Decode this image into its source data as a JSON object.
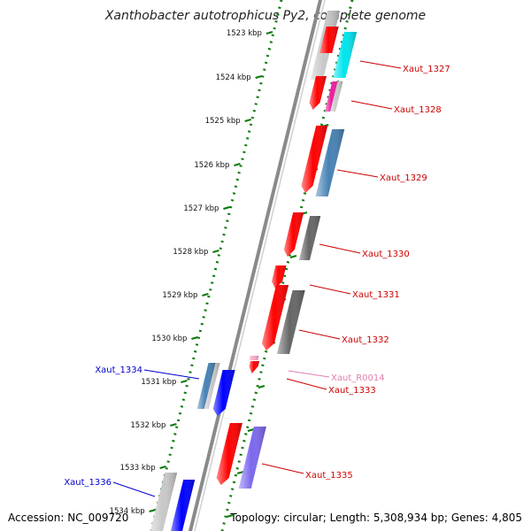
{
  "title": "Xanthobacter autotrophicus Py2, complete genome",
  "footer": {
    "accession": "Accession: NC_009720",
    "summary": "Topology: circular; Length: 5,308,934 bp; Genes: 4,805"
  },
  "ticks": [
    {
      "label": "1523 kbp"
    },
    {
      "label": "1524 kbp"
    },
    {
      "label": "1525 kbp"
    },
    {
      "label": "1526 kbp"
    },
    {
      "label": "1527 kbp"
    },
    {
      "label": "1528 kbp"
    },
    {
      "label": "1529 kbp"
    },
    {
      "label": "1530 kbp"
    },
    {
      "label": "1531 kbp"
    },
    {
      "label": "1532 kbp"
    },
    {
      "label": "1533 kbp"
    },
    {
      "label": "1534 kbp"
    }
  ],
  "colors": {
    "backbone": "#8a8a8a",
    "tick_green": "#0a7a0a",
    "gene_red": "#ff0000",
    "label_red": "#cc0000",
    "label_blue": "#0000cc",
    "label_pink": "#e080b0",
    "cyan": "#00e5ee",
    "magenta": "#ee1aa0",
    "steelblue": "#4682b4",
    "darkgray": "#666666",
    "lightgray": "#c8c8c8",
    "blue": "#0000ff",
    "mediumpurple": "#7b68ee"
  },
  "gene_labels": [
    {
      "text": "Xaut_1327",
      "color_key": "label_red"
    },
    {
      "text": "Xaut_1328",
      "color_key": "label_red"
    },
    {
      "text": "Xaut_1329",
      "color_key": "label_red"
    },
    {
      "text": "Xaut_1330",
      "color_key": "label_red"
    },
    {
      "text": "Xaut_1331",
      "color_key": "label_red"
    },
    {
      "text": "Xaut_1332",
      "color_key": "label_red"
    },
    {
      "text": "Xaut_R0014",
      "color_key": "label_pink"
    },
    {
      "text": "Xaut_1333",
      "color_key": "label_red"
    },
    {
      "text": "Xaut_1334",
      "color_key": "label_blue"
    },
    {
      "text": "Xaut_1335",
      "color_key": "label_red"
    },
    {
      "text": "Xaut_1336",
      "color_key": "label_blue"
    }
  ]
}
